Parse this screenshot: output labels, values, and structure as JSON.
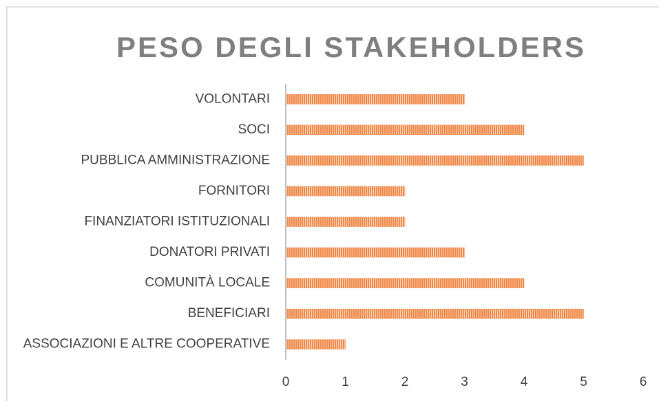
{
  "chart_data": {
    "type": "bar",
    "orientation": "horizontal",
    "title": "PESO DEGLI STAKEHOLDERS",
    "categories": [
      "VOLONTARI",
      "SOCI",
      "PUBBLICA AMMINISTRAZIONE",
      "FORNITORI",
      "FINANZIATORI ISTITUZIONALI",
      "DONATORI PRIVATI",
      "COMUNITÀ LOCALE",
      "BENEFICIARI",
      "ASSOCIAZIONI E ALTRE COOPERATIVE"
    ],
    "values": [
      3,
      4,
      5,
      2,
      2,
      3,
      4,
      5,
      1
    ],
    "color": "#f08a4b",
    "xlim": [
      0,
      6
    ],
    "xticks": [
      0,
      1,
      2,
      3,
      4,
      5,
      6
    ],
    "grid": false
  }
}
